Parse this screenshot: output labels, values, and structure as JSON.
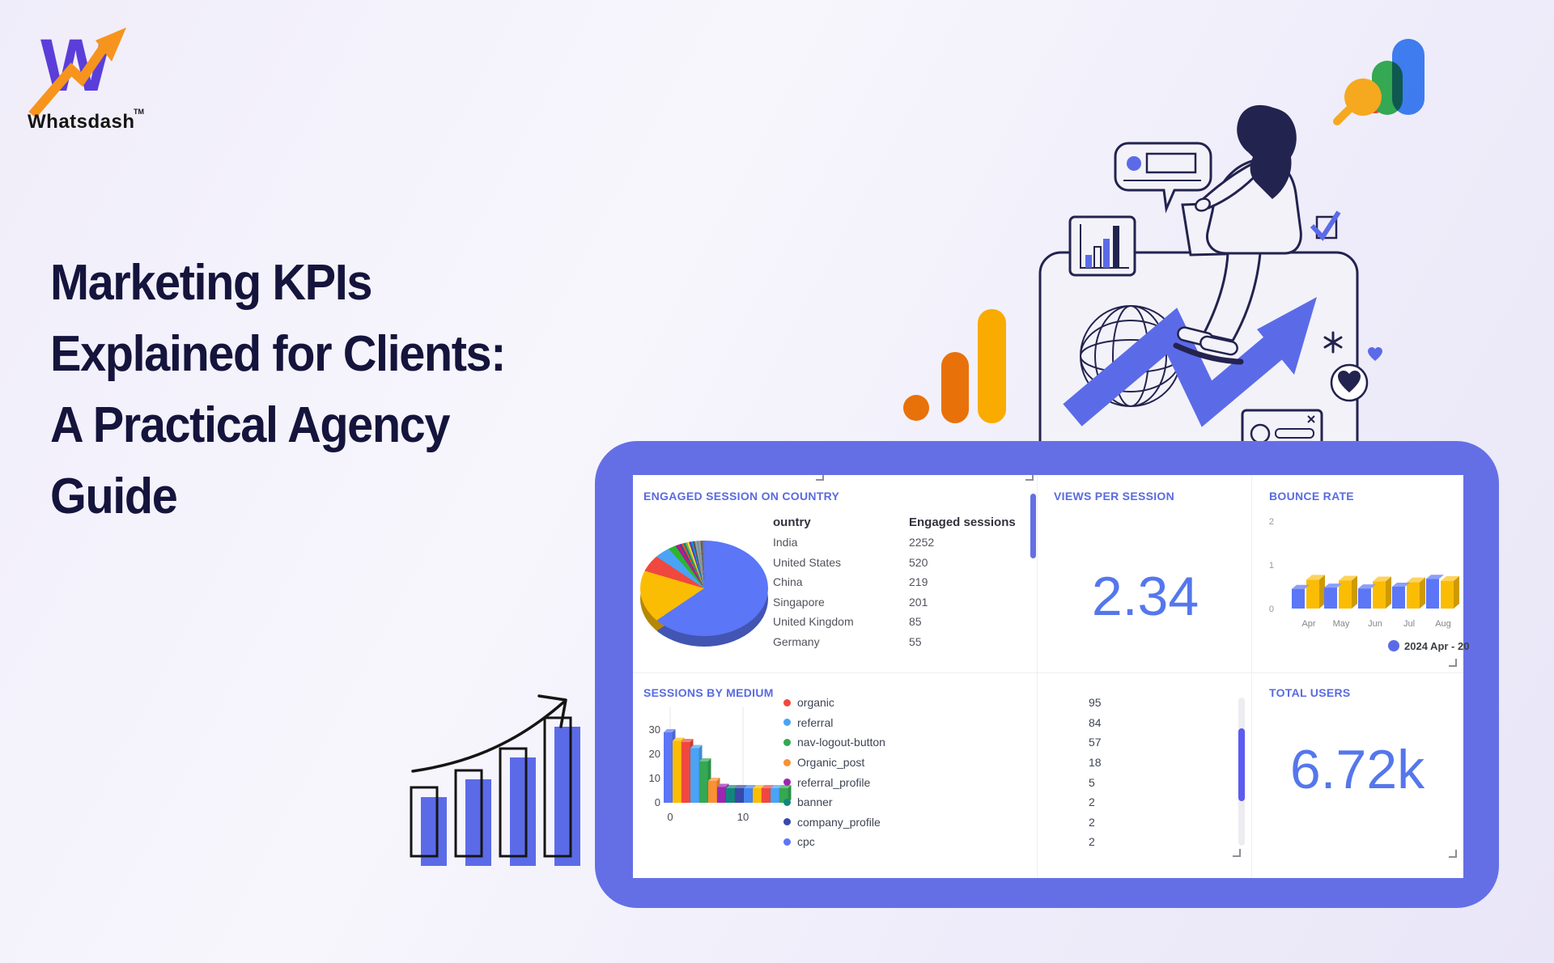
{
  "branding": {
    "monogram": "W",
    "name": "Whatsdash",
    "tm": "TM"
  },
  "heading": {
    "lines": [
      "Marketing KPIs",
      "Explained for Clients:",
      "A Practical Agency",
      "Guide"
    ]
  },
  "dashboard": {
    "engaged": {
      "title": "ENGAGED SESSION ON COUNTRY",
      "col_country": "ountry",
      "col_sessions": "Engaged sessions",
      "rows": [
        [
          "India",
          "2252"
        ],
        [
          "United States",
          "520"
        ],
        [
          "China",
          "219"
        ],
        [
          "Singapore",
          "201"
        ],
        [
          "United Kingdom",
          "85"
        ],
        [
          "Germany",
          "55"
        ]
      ]
    },
    "views": {
      "title": "VIEWS PER SESSION",
      "value": "2.34"
    },
    "bounce": {
      "title": "BOUNCE RATE",
      "y_ticks": [
        "2",
        "1",
        "0"
      ],
      "months": [
        "Apr",
        "May",
        "Jun",
        "Jul",
        "Aug"
      ],
      "legend": "2024 Apr - 20"
    },
    "medium": {
      "title": "SESSIONS BY MEDIUM",
      "y_ticks": [
        "30",
        "20",
        "10",
        "0"
      ],
      "x_ticks": [
        "0",
        "10"
      ],
      "legend": [
        {
          "label": "organic",
          "color": "#f0483e",
          "value": "95"
        },
        {
          "label": "referral",
          "color": "#4aa3f5",
          "value": "84"
        },
        {
          "label": "nav-logout-button",
          "color": "#34a853",
          "value": "57"
        },
        {
          "label": "Organic_post",
          "color": "#fa9133",
          "value": "18"
        },
        {
          "label": "referral_profile",
          "color": "#9c27b0",
          "value": "5"
        },
        {
          "label": "banner",
          "color": "#13867c",
          "value": "2"
        },
        {
          "label": "company_profile",
          "color": "#3949ab",
          "value": "2"
        },
        {
          "label": "cpc",
          "color": "#5b76f7",
          "value": "2"
        }
      ]
    },
    "total": {
      "title": "TOTAL USERS",
      "value": "6.72k"
    }
  },
  "colors": {
    "frame": "#646fe6",
    "accent_blue": "#5b6be8",
    "kpi_blue": "#5577ec",
    "title_blue": "#5a6be0",
    "heading_navy": "#14143c",
    "logo_purple": "#5b3ed9",
    "logo_orange": "#f7941e",
    "ga_orange_dark": "#e8710a",
    "ga_orange_amber": "#f9ab00"
  },
  "chart_data": [
    {
      "type": "pie",
      "title": "ENGAGED SESSION ON COUNTRY",
      "note": "share of engaged sessions, approx % read from pie",
      "slices": [
        {
          "label": "India",
          "color": "#5b76f7",
          "pct": 65.55
        },
        {
          "label": "United States",
          "color": "#fbbc04",
          "pct": 14
        },
        {
          "label": "China",
          "color": "#f0483e",
          "pct": 4.8
        },
        {
          "label": "Singapore",
          "color": "#4aa3f5",
          "pct": 4
        },
        {
          "label": "United Kingdom",
          "color": "#2db52d",
          "pct": 2.2
        },
        {
          "label": "other",
          "color": "#8e24aa",
          "pct": 0.63
        },
        {
          "label": "other",
          "color": "#d81b60",
          "pct": 0.63
        },
        {
          "label": "other",
          "color": "#3949ab",
          "pct": 0.63
        },
        {
          "label": "other",
          "color": "#f4511e",
          "pct": 0.63
        },
        {
          "label": "other",
          "color": "#00897b",
          "pct": 0.63
        },
        {
          "label": "other",
          "color": "#7cb342",
          "pct": 0.63
        },
        {
          "label": "other",
          "color": "#fdd835",
          "pct": 0.63
        },
        {
          "label": "other",
          "color": "#5e35b1",
          "pct": 0.63
        },
        {
          "label": "other",
          "color": "#039be5",
          "pct": 0.63
        },
        {
          "label": "other",
          "color": "#6d4c41",
          "pct": 0.63
        },
        {
          "label": "other",
          "color": "#90a4ae",
          "pct": 0.63
        },
        {
          "label": "other",
          "color": "#78909c",
          "pct": 0.63
        },
        {
          "label": "other",
          "color": "#9e9e9e",
          "pct": 0.63
        },
        {
          "label": "other",
          "color": "#616161",
          "pct": 0.63
        },
        {
          "label": "other",
          "color": "#757575",
          "pct": 0.63
        }
      ]
    },
    {
      "type": "bar",
      "title": "BOUNCE RATE",
      "categories": [
        "Apr",
        "May",
        "Jun",
        "Jul",
        "Aug"
      ],
      "ylim": [
        0,
        2
      ],
      "y_ticks": [
        2,
        1,
        0
      ],
      "series": [
        {
          "name": "2024 Apr - 20",
          "color": "#5b76f7",
          "values": [
            0.45,
            0.48,
            0.46,
            0.5,
            0.68
          ]
        },
        {
          "name": "",
          "color": "#fbbc04",
          "values": [
            0.66,
            0.64,
            0.62,
            0.6,
            0.63
          ]
        }
      ],
      "legend_position": "bottom-right"
    },
    {
      "type": "bar",
      "title": "SESSIONS BY MEDIUM",
      "y_ticks": [
        30,
        20,
        10,
        0
      ],
      "x_ticks": [
        0,
        10
      ],
      "values": [
        29,
        25.5,
        25,
        22.5,
        17,
        9,
        6.5,
        6,
        6,
        6,
        6,
        6,
        6,
        6
      ],
      "colors": [
        "#5b76f7",
        "#fbbc04",
        "#f0483e",
        "#4aa3f5",
        "#34a853",
        "#fa9133",
        "#9c27b0",
        "#13867c",
        "#3949ab",
        "#4285f4",
        "#fbbc04",
        "#f0483e",
        "#4aa3f5",
        "#34a853"
      ],
      "legend": [
        {
          "label": "organic",
          "color": "#f0483e",
          "value": 95
        },
        {
          "label": "referral",
          "color": "#4aa3f5",
          "value": 84
        },
        {
          "label": "nav-logout-button",
          "color": "#34a853",
          "value": 57
        },
        {
          "label": "Organic_post",
          "color": "#fa9133",
          "value": 18
        },
        {
          "label": "referral_profile",
          "color": "#9c27b0",
          "value": 5
        },
        {
          "label": "banner",
          "color": "#13867c",
          "value": 2
        },
        {
          "label": "company_profile",
          "color": "#3949ab",
          "value": 2
        },
        {
          "label": "cpc",
          "color": "#5b76f7",
          "value": 2
        }
      ]
    },
    {
      "type": "table",
      "title": "ENGAGED SESSION ON COUNTRY",
      "columns": [
        "ountry",
        "Engaged sessions"
      ],
      "rows": [
        [
          "India",
          2252
        ],
        [
          "United States",
          520
        ],
        [
          "China",
          219
        ],
        [
          "Singapore",
          201
        ],
        [
          "United Kingdom",
          85
        ],
        [
          "Germany",
          55
        ]
      ]
    },
    {
      "type": "kpi",
      "title": "VIEWS PER SESSION",
      "value": "2.34"
    },
    {
      "type": "kpi",
      "title": "TOTAL USERS",
      "value": "6.72k"
    }
  ]
}
